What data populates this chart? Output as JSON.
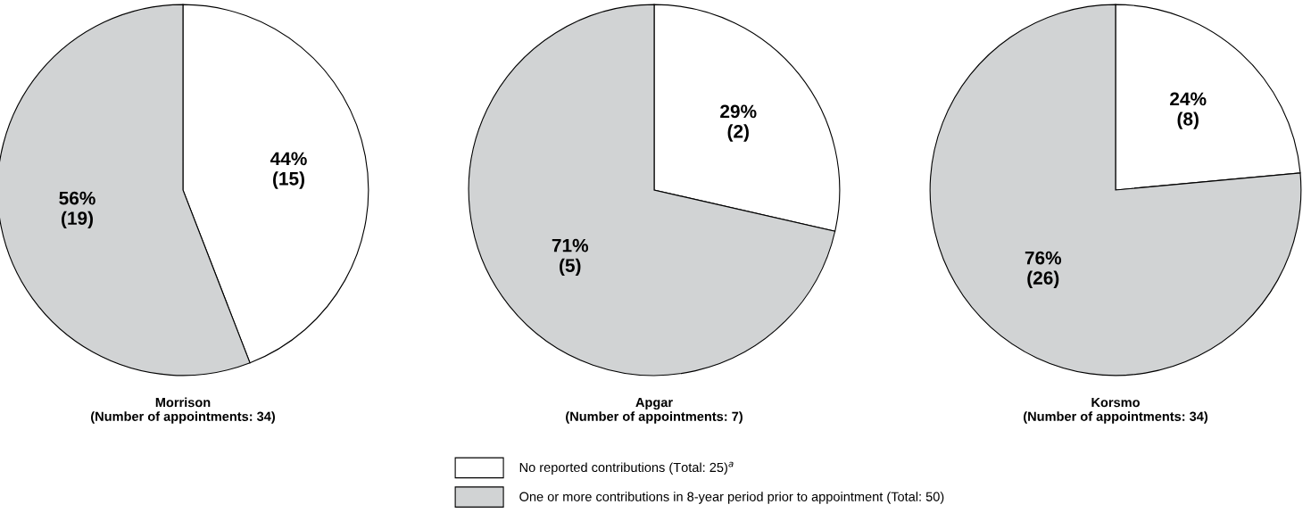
{
  "chart_data": [
    {
      "type": "pie",
      "title": "Morrison\n(Number of appointments: 34)",
      "categories": [
        "No reported contributions (Total: 25)$^{a}$",
        "One or more contributions in 8-year period prior to appointment (Total: 50)"
      ],
      "values": [
        15,
        19
      ],
      "colors": [
        "#ffffff",
        "#d1d3d4"
      ],
      "value_labels": [
        "44%\n(15)",
        "56%\n(19)"
      ],
      "legend": "bottom"
    },
    {
      "type": "pie",
      "title": "Apgar\n(Number of appointments: 7)",
      "categories": [
        null,
        null
      ],
      "values": [
        2,
        5
      ],
      "colors": [
        "#ffffff",
        "#d1d3d4"
      ],
      "value_labels": [
        "29%\n(2)",
        "71%\n(5)"
      ]
    },
    {
      "type": "pie",
      "title": "Korsmo\n(Number of appointments: 34)",
      "categories": [
        null,
        null
      ],
      "values": [
        8,
        26
      ],
      "colors": [
        "#ffffff",
        "#d1d3d4"
      ],
      "value_labels": [
        "24%\n(8)",
        "76%\n(26)"
      ]
    }
  ]
}
